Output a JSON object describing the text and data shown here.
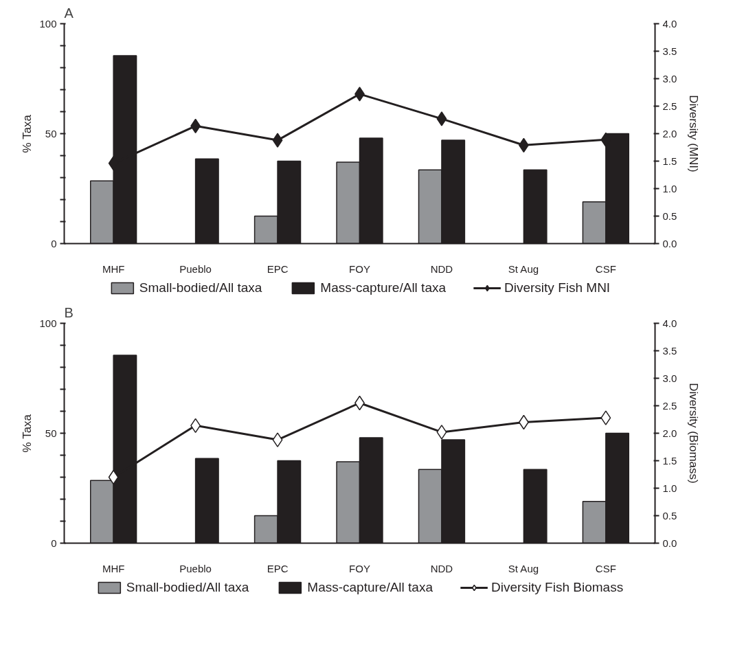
{
  "chart_data": [
    {
      "type": "bar",
      "title": "A",
      "categories": [
        "MHF",
        "Pueblo",
        "EPC",
        "FOY",
        "NDD",
        "St Aug",
        "CSF"
      ],
      "ylabel": "% Taxa",
      "y2label": "Diversity (MNI)",
      "ylim": [
        0,
        100
      ],
      "yticks": [
        0,
        {
          "value": 10,
          "label": null
        },
        {
          "value": 20,
          "label": null
        },
        {
          "value": 30,
          "label": null
        },
        {
          "value": 40,
          "label": null
        },
        50,
        {
          "value": 60,
          "label": null
        },
        {
          "value": 70,
          "label": null
        },
        {
          "value": 80,
          "label": null
        },
        {
          "value": 90,
          "label": null
        },
        100
      ],
      "y2lim": [
        0,
        4
      ],
      "y2ticks": [
        {
          "value": 0,
          "label": "0.0"
        },
        0.5,
        {
          "value": 1,
          "label": "1.0"
        },
        1.5,
        {
          "value": 2,
          "label": "2.0"
        },
        2.5,
        {
          "value": 3,
          "label": "3.0"
        },
        3.5,
        {
          "value": 4,
          "label": "4.0"
        }
      ],
      "series": [
        {
          "name": "Small-bodied/All taxa",
          "type": "bar",
          "color": "#939598",
          "values": [
            28.5,
            null,
            12.5,
            37,
            33.5,
            null,
            19
          ]
        },
        {
          "name": "Mass-capture/All taxa",
          "type": "bar",
          "color": "#231f20",
          "values": [
            85.5,
            38.5,
            37.5,
            48,
            47,
            33.5,
            50
          ]
        },
        {
          "name": "Diversity Fish MNI",
          "type": "line",
          "axis": "y2",
          "color": "#231f20",
          "colors": [
            "#231f20",
            "#231f20",
            "#231f20",
            "#231f20",
            "#231f20",
            "#231f20",
            "#231f20"
          ],
          "values": [
            1.46,
            2.14,
            1.88,
            2.72,
            2.27,
            1.79,
            1.89
          ]
        }
      ],
      "marker": "diamond",
      "legend": "bottom",
      "grid": false
    },
    {
      "type": "bar",
      "title": "B",
      "categories": [
        "MHF",
        "Pueblo",
        "EPC",
        "FOY",
        "NDD",
        "St Aug",
        "CSF"
      ],
      "ylabel": "% Taxa",
      "y2label": "Diversity (Biomass)",
      "ylim": [
        0,
        100
      ],
      "yticks": [
        0,
        {
          "value": 10,
          "label": null
        },
        {
          "value": 20,
          "label": null
        },
        {
          "value": 30,
          "label": null
        },
        {
          "value": 40,
          "label": null
        },
        50,
        {
          "value": 60,
          "label": null
        },
        {
          "value": 70,
          "label": null
        },
        {
          "value": 80,
          "label": null
        },
        {
          "value": 90,
          "label": null
        },
        100
      ],
      "y2lim": [
        0,
        4
      ],
      "y2ticks": [
        {
          "value": 0,
          "label": "0.0"
        },
        0.5,
        {
          "value": 1,
          "label": "1.0"
        },
        1.5,
        {
          "value": 2,
          "label": "2.0"
        },
        2.5,
        {
          "value": 3,
          "label": "3.0"
        },
        3.5,
        {
          "value": 4,
          "label": "4.0"
        }
      ],
      "series": [
        {
          "name": "Small-bodied/All taxa",
          "type": "bar",
          "color": "#939598",
          "values": [
            28.5,
            null,
            12.5,
            37,
            33.5,
            null,
            19
          ]
        },
        {
          "name": "Mass-capture/All taxa",
          "type": "bar",
          "color": "#231f20",
          "values": [
            85.5,
            38.5,
            37.5,
            48,
            47,
            33.5,
            50
          ]
        },
        {
          "name": "Diversity Fish Biomass",
          "type": "line",
          "axis": "y2",
          "color": "#231f20",
          "colors": [
            "#ffffff",
            "#ffffff",
            "#ffffff",
            "#ffffff",
            "#ffffff",
            "#ffffff",
            "#ffffff"
          ],
          "values": [
            1.2,
            2.14,
            1.88,
            2.55,
            2.02,
            2.2,
            2.28
          ]
        }
      ],
      "marker": "diamond",
      "legend": "bottom",
      "grid": false
    }
  ]
}
